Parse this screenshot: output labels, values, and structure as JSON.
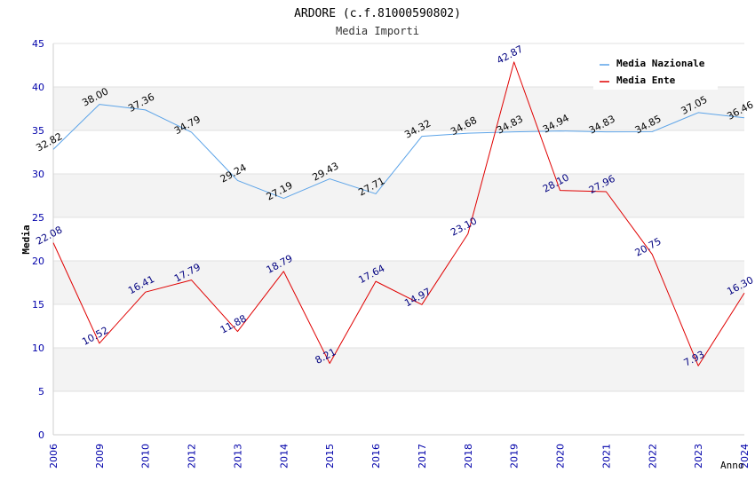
{
  "chart_data": {
    "type": "line",
    "title": "ARDORE (c.f.81000590802)",
    "subtitle": "Media Importi",
    "xlabel": "Anno",
    "ylabel": "Media",
    "ylim": [
      0,
      45
    ],
    "yticks": [
      0,
      5,
      10,
      15,
      20,
      25,
      30,
      35,
      40,
      45
    ],
    "grid": true,
    "legend_position": "top-right",
    "categories": [
      "2006",
      "2009",
      "2010",
      "2012",
      "2013",
      "2014",
      "2015",
      "2016",
      "2017",
      "2018",
      "2019",
      "2020",
      "2021",
      "2022",
      "2023",
      "2024"
    ],
    "series": [
      {
        "name": "Media Nazionale",
        "color": "#5ba3e8",
        "label_color": "#000000",
        "values": [
          32.82,
          38.0,
          37.36,
          34.79,
          29.24,
          27.19,
          29.43,
          27.71,
          34.32,
          34.68,
          34.83,
          34.94,
          34.83,
          34.85,
          37.05,
          36.46
        ],
        "labels": [
          "32.82",
          "38.00",
          "37.36",
          "34.79",
          "29.24",
          "27.19",
          "29.43",
          "27.71",
          "34.32",
          "34.68",
          "34.83",
          "34.94",
          "34.83",
          "34.85",
          "37.05",
          "36.46"
        ]
      },
      {
        "name": "Media Ente",
        "color": "#e00000",
        "label_color": "#000080",
        "values": [
          22.08,
          10.52,
          16.41,
          17.79,
          11.88,
          18.79,
          8.21,
          17.64,
          14.97,
          23.1,
          42.87,
          28.1,
          27.96,
          20.75,
          7.93,
          16.3
        ],
        "labels": [
          "22.08",
          "10.52",
          "16.41",
          "17.79",
          "11.88",
          "18.79",
          "8.21",
          "17.64",
          "14.97",
          "23.10",
          "42.87",
          "28.10",
          "27.96",
          "20.75",
          "7.93",
          "16.30"
        ]
      }
    ]
  }
}
